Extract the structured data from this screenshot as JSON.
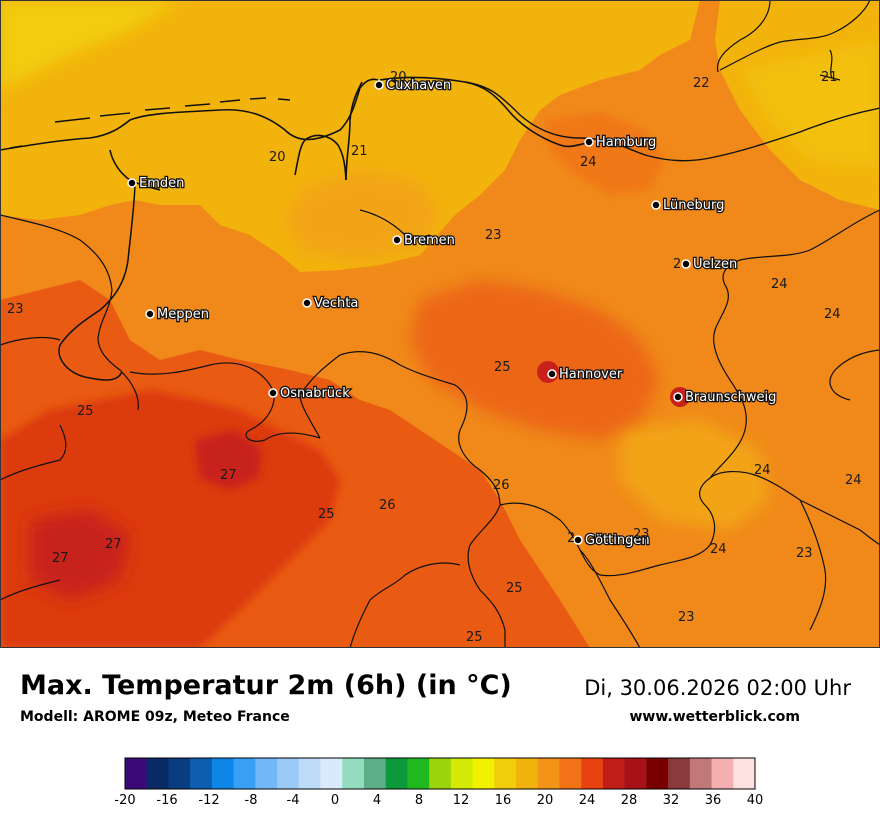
{
  "header": {
    "title": "Max. Temperatur 2m (6h) (in °C)",
    "model": "Modell: AROME 09z, Meteo France",
    "datetime": "Di, 30.06.2026 02:00 Uhr",
    "website": "www.wetterblick.com"
  },
  "map": {
    "cities": [
      {
        "name": "Cuxhaven"
      },
      {
        "name": "Hamburg"
      },
      {
        "name": "Emden"
      },
      {
        "name": "Lüneburg"
      },
      {
        "name": "Bremen"
      },
      {
        "name": "Uelzen"
      },
      {
        "name": "Meppen"
      },
      {
        "name": "Vechta"
      },
      {
        "name": "Hannover"
      },
      {
        "name": "Osnabrück"
      },
      {
        "name": "Braunschweig"
      },
      {
        "name": "Göttingen"
      }
    ],
    "values": [
      "20",
      "22",
      "21",
      "20",
      "21",
      "24",
      "23",
      "2",
      "24",
      "23",
      "24",
      "25",
      "25",
      "27",
      "24",
      "24",
      "26",
      "26",
      "25",
      "27",
      "27",
      "2",
      "23",
      "24",
      "23",
      "25",
      "23",
      "25"
    ]
  },
  "legend": {
    "unit": "°C",
    "min": -20,
    "max": 40,
    "step": 2,
    "colors": [
      "#3a0a7a",
      "#0a2a66",
      "#0a3d80",
      "#0c5fb0",
      "#0d86e8",
      "#3aa0f5",
      "#72b8f7",
      "#9ccaf7",
      "#bcdcf9",
      "#d8eafc",
      "#94dcc0",
      "#5caf88",
      "#0c9a3a",
      "#1fb81f",
      "#9bd40a",
      "#d4ea06",
      "#f2f200",
      "#f2cd0c",
      "#f2b20c",
      "#f29418",
      "#f27218",
      "#e84210",
      "#c01c18",
      "#a61218",
      "#7a0000",
      "#8a3a3a",
      "#c07878",
      "#f4b0b0",
      "#fde0e0"
    ],
    "tick_labels": [
      "-20",
      "-16",
      "-12",
      "-8",
      "-4",
      "0",
      "4",
      "8",
      "12",
      "16",
      "20",
      "24",
      "28",
      "32",
      "36",
      "40"
    ]
  }
}
